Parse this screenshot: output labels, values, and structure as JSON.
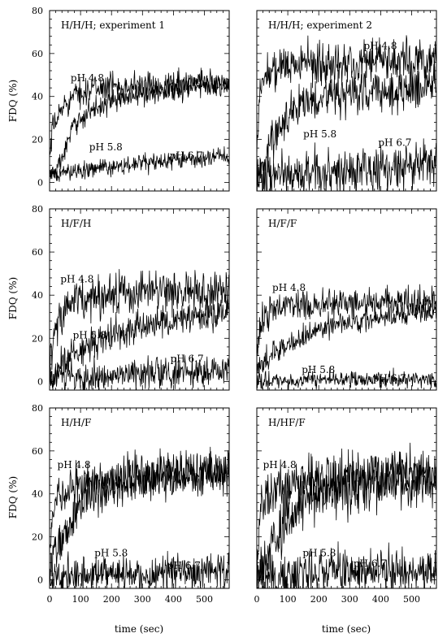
{
  "chart_data": {
    "type": "line",
    "xlabel": "time (sec)",
    "ylabel": "FDQ (%)",
    "xlim": [
      0,
      580
    ],
    "ylim": [
      -4,
      80
    ],
    "x_ticks": [
      0,
      100,
      200,
      300,
      400,
      500
    ],
    "y_ticks": [
      0,
      20,
      40,
      60,
      80
    ],
    "panels": [
      {
        "title": "H/H/H; experiment 1",
        "series": [
          {
            "name": "pH 4.8",
            "x": [
              0,
              10,
              25,
              50,
              100,
              150,
              200,
              300,
              400,
              500,
              580
            ],
            "values": [
              10,
              25,
              30,
              37,
              42,
              44,
              45,
              45,
              46,
              47,
              46
            ],
            "noise": 3,
            "label_at": [
              68,
              47
            ]
          },
          {
            "name": "pH 5.8",
            "x": [
              0,
              25,
              50,
              75,
              100,
              150,
              200,
              300,
              400,
              500,
              580
            ],
            "values": [
              3,
              6,
              15,
              25,
              30,
              35,
              38,
              41,
              43,
              45,
              45
            ],
            "noise": 2.5,
            "label_at": [
              128,
              15
            ]
          },
          {
            "name": "pH 6.7",
            "x": [
              0,
              100,
              200,
              300,
              400,
              500,
              580
            ],
            "values": [
              3,
              6,
              7,
              9,
              10,
              11,
              12
            ],
            "noise": 2,
            "label_at": [
              388,
              11
            ]
          }
        ]
      },
      {
        "title": "H/H/H; experiment 2",
        "series": [
          {
            "name": "pH 4.8",
            "x": [
              0,
              10,
              25,
              50,
              100,
              200,
              300,
              400,
              500,
              580
            ],
            "values": [
              15,
              40,
              50,
              53,
              55,
              55,
              56,
              57,
              57,
              57
            ],
            "noise": 5,
            "label_at": [
              345,
              62
            ]
          },
          {
            "name": "pH 5.8",
            "x": [
              0,
              25,
              50,
              100,
              150,
              200,
              300,
              400,
              500,
              580
            ],
            "values": [
              0,
              10,
              20,
              32,
              38,
              40,
              41,
              42,
              44,
              48
            ],
            "noise": 5,
            "label_at": [
              150,
              21
            ]
          },
          {
            "name": "pH 6.7",
            "x": [
              0,
              100,
              200,
              300,
              400,
              500,
              580
            ],
            "values": [
              2,
              4,
              5,
              6,
              7,
              8,
              9
            ],
            "noise": 5,
            "label_at": [
              392,
              17
            ]
          }
        ]
      },
      {
        "title": "H/F/H",
        "series": [
          {
            "name": "pH 4.8",
            "x": [
              0,
              10,
              25,
              50,
              100,
              200,
              300,
              400,
              500,
              580
            ],
            "values": [
              5,
              20,
              28,
              34,
              38,
              40,
              41,
              42,
              42,
              42
            ],
            "noise": 5,
            "label_at": [
              35,
              46
            ]
          },
          {
            "name": "pH 5.8",
            "x": [
              0,
              25,
              50,
              100,
              150,
              200,
              300,
              400,
              500,
              580
            ],
            "values": [
              0,
              5,
              10,
              15,
              18,
              22,
              26,
              28,
              30,
              32
            ],
            "noise": 3.5,
            "label_at": [
              75,
              20
            ]
          },
          {
            "name": "pH 6.7",
            "x": [
              0,
              100,
              200,
              300,
              400,
              500,
              580
            ],
            "values": [
              1,
              2,
              3,
              4,
              4,
              5,
              5
            ],
            "noise": 3.5,
            "label_at": [
              390,
              9
            ]
          }
        ]
      },
      {
        "title": "H/F/F",
        "series": [
          {
            "name": "pH 4.8",
            "x": [
              0,
              10,
              25,
              50,
              100,
              200,
              300,
              400,
              500,
              580
            ],
            "values": [
              10,
              25,
              30,
              33,
              35,
              36,
              37,
              37,
              37,
              37
            ],
            "noise": 3.5,
            "label_at": [
              50,
              42
            ]
          },
          {
            "name": "pH 5.8",
            "x": [
              0,
              25,
              50,
              100,
              150,
              200,
              300,
              400,
              500,
              580
            ],
            "values": [
              5,
              10,
              13,
              17,
              21,
              24,
              28,
              30,
              32,
              34
            ],
            "noise": 2.5,
            "label_at": [
              145,
              4
            ]
          },
          {
            "name": "pH 6.7",
            "x": [
              0,
              100,
              200,
              300,
              400,
              500,
              580
            ],
            "values": [
              0,
              0,
              1,
              1,
              1,
              1,
              1
            ],
            "noise": 2,
            "label_at": [
              375,
              0
            ]
          }
        ]
      },
      {
        "title": "H/H/F",
        "series": [
          {
            "name": "pH 4.8",
            "x": [
              0,
              10,
              25,
              50,
              100,
              200,
              300,
              400,
              500,
              580
            ],
            "values": [
              15,
              30,
              38,
              42,
              45,
              47,
              48,
              50,
              51,
              50
            ],
            "noise": 5,
            "label_at": [
              25,
              52
            ]
          },
          {
            "name": "pH 5.8",
            "x": [
              0,
              25,
              50,
              100,
              150,
              200,
              300,
              400,
              500,
              580
            ],
            "values": [
              5,
              15,
              22,
              35,
              40,
              43,
              46,
              48,
              49,
              50
            ],
            "noise": 5,
            "label_at": [
              145,
              11
            ]
          },
          {
            "name": "pH 6.7",
            "x": [
              0,
              100,
              200,
              300,
              400,
              500,
              580
            ],
            "values": [
              1,
              2,
              3,
              3,
              4,
              4,
              4
            ],
            "noise": 4.5,
            "label_at": [
              380,
              5
            ]
          }
        ]
      },
      {
        "title": "H/HF/F",
        "series": [
          {
            "name": "pH 4.8",
            "x": [
              0,
              10,
              25,
              50,
              100,
              200,
              300,
              400,
              500,
              580
            ],
            "values": [
              10,
              30,
              38,
              42,
              44,
              46,
              48,
              49,
              50,
              50
            ],
            "noise": 6,
            "label_at": [
              20,
              52
            ]
          },
          {
            "name": "pH 5.8",
            "x": [
              0,
              25,
              50,
              100,
              150,
              200,
              300,
              400,
              500,
              580
            ],
            "values": [
              0,
              10,
              18,
              28,
              35,
              40,
              43,
              45,
              45,
              45
            ],
            "noise": 6,
            "label_at": [
              148,
              11
            ]
          },
          {
            "name": "pH 6.7",
            "x": [
              0,
              100,
              200,
              300,
              400,
              500,
              580
            ],
            "values": [
              1,
              2,
              3,
              3,
              4,
              4,
              4
            ],
            "noise": 5,
            "label_at": [
              312,
              6
            ]
          }
        ]
      }
    ]
  }
}
